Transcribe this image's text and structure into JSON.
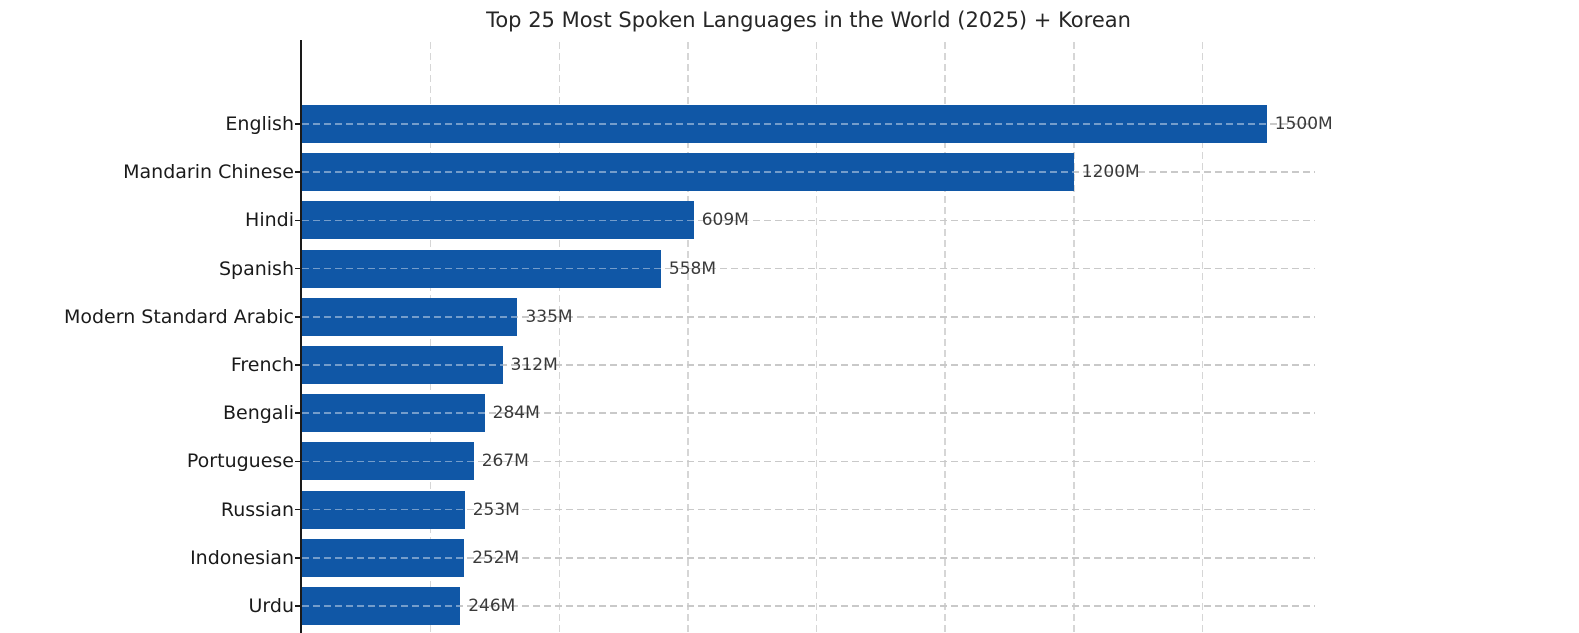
{
  "chart_data": {
    "type": "bar",
    "orientation": "horizontal",
    "title": "Top 25 Most Spoken Languages in the World (2025) + Korean",
    "categories": [
      "English",
      "Mandarin Chinese",
      "Hindi",
      "Spanish",
      "Modern Standard Arabic",
      "French",
      "Bengali",
      "Portuguese",
      "Russian",
      "Indonesian",
      "Urdu"
    ],
    "values": [
      1500,
      1200,
      609,
      558,
      335,
      312,
      284,
      267,
      253,
      252,
      246
    ],
    "value_labels": [
      "1500M",
      "1200M",
      "609M",
      "558M",
      "335M",
      "312M",
      "284M",
      "267M",
      "253M",
      "252M",
      "246M"
    ],
    "unit": "M",
    "xlabel": "",
    "ylabel": "",
    "xlim": [
      0,
      1575
    ],
    "x_grid_step": 200,
    "grid": true,
    "legend": false,
    "visible_rows": 11
  },
  "colors": {
    "bar": "#1057a6",
    "vertical_grid": "#d6d6d6",
    "horizontal_grid": "#c9c9c9",
    "axis": "#1a1a1a",
    "title_text": "#262626",
    "category_text": "#1a1a1a",
    "value_text": "#3a3a3a",
    "background": "#ffffff"
  }
}
